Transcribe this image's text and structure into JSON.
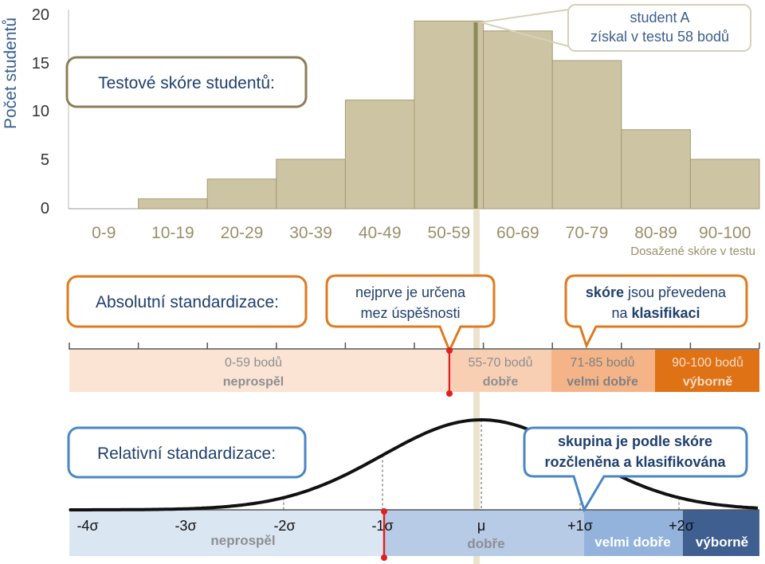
{
  "colors": {
    "bar_fill": "#cdc4a3",
    "bar_stroke": "#a59a73",
    "highlight_line": "#8c8a57",
    "text_muted": "#9b8f6a",
    "axis": "#555555",
    "orange_box": "#e07a1f",
    "blue_box": "#4a86c6",
    "band_light": "#fbe4d4",
    "band_mid": "#f8c6a5",
    "band_light2": "#f5b487",
    "band_dark": "#e07216",
    "blue_light": "#dbe6f3",
    "blue_mid": "#b7cbe6",
    "blue_dark2": "#93b3dc",
    "blue_dark": "#3f5f91",
    "red_marker": "#e02020"
  },
  "chart_data": {
    "type": "bar",
    "ylabel": "Počet studentů",
    "xlabel": "Dosažené skóre v testu",
    "yticks": [
      "20",
      "15",
      "10",
      "5",
      "0"
    ],
    "ylim": [
      0,
      20
    ],
    "categories": [
      "0-9",
      "10-19",
      "20-29",
      "30-39",
      "40-49",
      "50-59",
      "60-69",
      "70-79",
      "80-89",
      "90-100"
    ],
    "values": [
      0,
      1,
      3,
      5,
      11,
      19,
      18,
      15,
      8,
      5
    ],
    "highlight_score": 58,
    "annotation_line1": "student A",
    "annotation_line2": "získal v testu 58 bodů"
  },
  "histogram_title": "Testové skóre studentů:",
  "absolute": {
    "title": "Absolutní standardizace:",
    "callout1_line1": "nejprve je určena",
    "callout1_line2": "mez úspěšnosti",
    "callout2_bold1": "skóre",
    "callout2_rest1": " jsou převedena",
    "callout2_pre2": "na ",
    "callout2_bold2": "klasifikaci",
    "bands": [
      {
        "range": "0-59 bodů",
        "grade": "neprospěl"
      },
      {
        "range": "55-70 bodů",
        "grade": "dobře"
      },
      {
        "range": "71-85 bodů",
        "grade": "velmi dobře"
      },
      {
        "range": "90-100 bodů",
        "grade": "výborně"
      }
    ]
  },
  "relative": {
    "title": "Relativní standardizace:",
    "callout_line1": "skupina je podle skóre",
    "callout_line2": "rozčleněna a klasifikována",
    "sigma_labels": [
      "-4σ",
      "-3σ",
      "-2σ",
      "-1σ",
      "μ",
      "+1σ",
      "+2σ"
    ],
    "grades": [
      "neprospěl",
      "dobře",
      "velmi dobře",
      "výborně"
    ]
  }
}
